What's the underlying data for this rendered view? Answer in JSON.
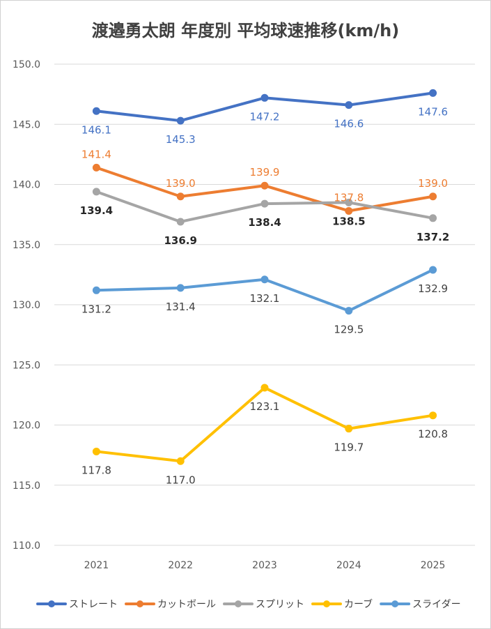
{
  "chart_data": {
    "type": "line",
    "title": "渡邉勇太朗 年度別 平均球速推移(km/h)",
    "categories": [
      "2021",
      "2022",
      "2023",
      "2024",
      "2025"
    ],
    "ylim": [
      110.0,
      150.0
    ],
    "yticks": [
      "110.0",
      "115.0",
      "120.0",
      "125.0",
      "130.0",
      "135.0",
      "140.0",
      "145.0",
      "150.0"
    ],
    "grid": "horizontal",
    "legend_position": "bottom",
    "series": [
      {
        "name": "ストレート",
        "color": "#4472C4",
        "label_color": "#4472C4",
        "bold_labels": false,
        "label_pos": [
          "below",
          "below",
          "below",
          "below",
          "below"
        ],
        "values": [
          146.1,
          145.3,
          147.2,
          146.6,
          147.6
        ],
        "labels": [
          "146.1",
          "145.3",
          "147.2",
          "146.6",
          "147.6"
        ]
      },
      {
        "name": "カットボール",
        "color": "#ED7D31",
        "label_color": "#ED7D31",
        "bold_labels": false,
        "label_pos": [
          "above",
          "above",
          "above",
          "above",
          "above"
        ],
        "values": [
          141.4,
          139.0,
          139.9,
          137.8,
          139.0
        ],
        "labels": [
          "141.4",
          "139.0",
          "139.9",
          "137.8",
          "139.0"
        ]
      },
      {
        "name": "スプリット",
        "color": "#A5A5A5",
        "label_color": "#262626",
        "bold_labels": true,
        "label_pos": [
          "below",
          "below",
          "below",
          "below",
          "below"
        ],
        "values": [
          139.4,
          136.9,
          138.4,
          138.5,
          137.2
        ],
        "labels": [
          "139.4",
          "136.9",
          "138.4",
          "138.5",
          "137.2"
        ]
      },
      {
        "name": "カーブ",
        "color": "#FFC000",
        "label_color": "#404040",
        "bold_labels": false,
        "label_pos": [
          "below",
          "below",
          "below",
          "below",
          "below"
        ],
        "values": [
          117.8,
          117.0,
          123.1,
          119.7,
          120.8
        ],
        "labels": [
          "117.8",
          "117.0",
          "123.1",
          "119.7",
          "120.8"
        ]
      },
      {
        "name": "スライダー",
        "color": "#5B9BD5",
        "label_color": "#404040",
        "bold_labels": false,
        "label_pos": [
          "below",
          "below",
          "below",
          "below",
          "below"
        ],
        "values": [
          131.2,
          131.4,
          132.1,
          129.5,
          132.9
        ],
        "labels": [
          "131.2",
          "131.4",
          "132.1",
          "129.5",
          "132.9"
        ]
      }
    ]
  }
}
